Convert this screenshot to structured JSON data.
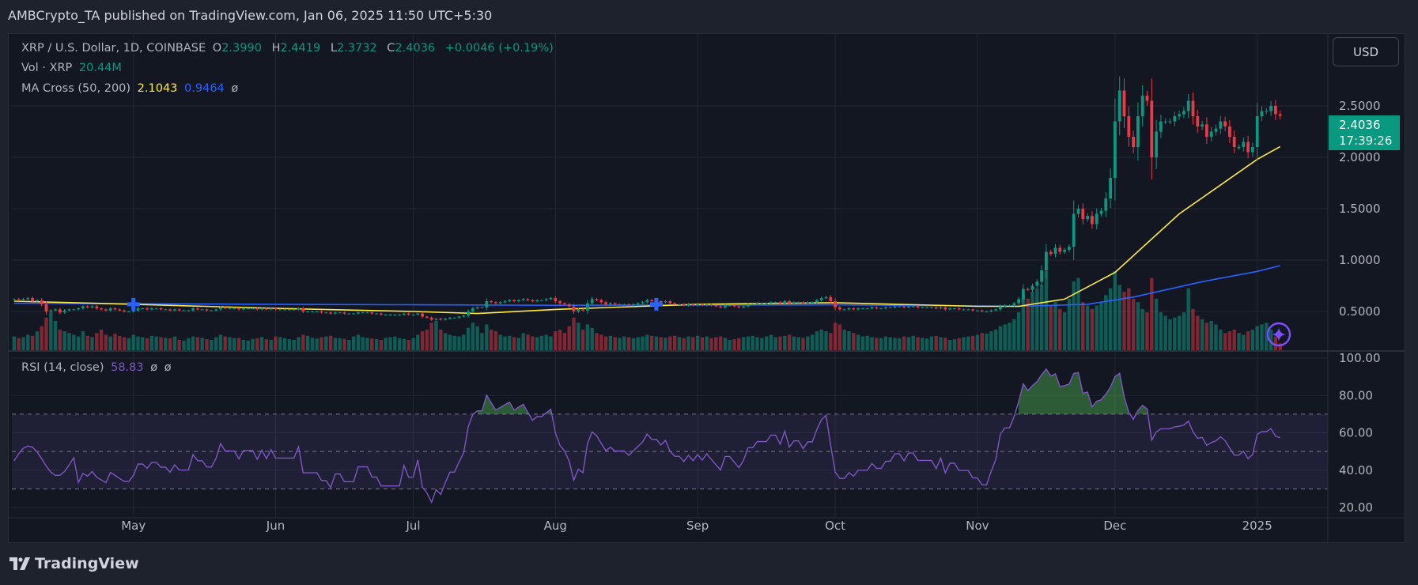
{
  "publisher_line": "AMBCrypto_TA published on TradingView.com, Jan 06, 2025 11:50 UTC+5:30",
  "legend": {
    "symbol": "XRP / U.S. Dollar, 1D, COINBASE",
    "o_label": "O",
    "o": "2.3990",
    "h_label": "H",
    "h": "2.4419",
    "l_label": "L",
    "l": "2.3732",
    "c_label": "C",
    "c": "2.4036",
    "change": "+0.0046 (+0.19%)",
    "vol_label": "Vol · XRP",
    "vol": "20.44M",
    "ma_label": "MA Cross (50, 200)",
    "ma50": "2.1043",
    "ma200": "0.9464",
    "ma_extra": "ø",
    "rsi_label": "RSI (14, close)",
    "rsi": "58.83",
    "rsi_extra1": "ø",
    "rsi_extra2": "ø"
  },
  "currency_button": "USD",
  "last_price": "2.4036",
  "countdown": "17:39:26",
  "footer_brand": "TradingView",
  "colors": {
    "up": "#089981",
    "down": "#f23645",
    "ma50": "#ffeb3b",
    "ma200": "#2962ff",
    "rsi": "#7e57c2",
    "background": "#131722"
  },
  "icons": {
    "cross_marker": "plus-icon",
    "assistant": "sparkle-icon",
    "brand": "tradingview-logo"
  },
  "chart_data": {
    "type": "candlestick",
    "start_date": "2024-04-05",
    "price_ticks": [
      "2.5000",
      "2.0000",
      "1.5000",
      "1.0000",
      "0.5000"
    ],
    "price_range": [
      0.04,
      3.18
    ],
    "rsi_ticks": [
      "100.00",
      "80.00",
      "60.00",
      "40.00",
      "20.00"
    ],
    "rsi_range": [
      14,
      104
    ],
    "rsi_bands": [
      70,
      50,
      30
    ],
    "time_ticks": [
      {
        "label": "May",
        "date": "2024-05-01"
      },
      {
        "label": "Jun",
        "date": "2024-06-01"
      },
      {
        "label": "Jul",
        "date": "2024-07-01"
      },
      {
        "label": "Aug",
        "date": "2024-08-01"
      },
      {
        "label": "Sep",
        "date": "2024-09-01"
      },
      {
        "label": "Oct",
        "date": "2024-10-01"
      },
      {
        "label": "Nov",
        "date": "2024-11-01"
      },
      {
        "label": "Dec",
        "date": "2024-12-01"
      },
      {
        "label": "2025",
        "date": "2025-01-01"
      }
    ],
    "close": [
      0.62,
      0.61,
      0.62,
      0.63,
      0.6,
      0.61,
      0.57,
      0.5,
      0.51,
      0.52,
      0.49,
      0.51,
      0.52,
      0.52,
      0.53,
      0.55,
      0.54,
      0.55,
      0.53,
      0.52,
      0.51,
      0.53,
      0.52,
      0.51,
      0.5,
      0.5,
      0.51,
      0.53,
      0.53,
      0.52,
      0.53,
      0.53,
      0.52,
      0.52,
      0.51,
      0.52,
      0.51,
      0.51,
      0.51,
      0.53,
      0.52,
      0.52,
      0.51,
      0.51,
      0.52,
      0.54,
      0.53,
      0.53,
      0.53,
      0.52,
      0.53,
      0.53,
      0.53,
      0.52,
      0.53,
      0.52,
      0.53,
      0.52,
      0.52,
      0.52,
      0.52,
      0.52,
      0.53,
      0.5,
      0.5,
      0.5,
      0.5,
      0.49,
      0.49,
      0.48,
      0.49,
      0.49,
      0.48,
      0.48,
      0.48,
      0.49,
      0.49,
      0.49,
      0.48,
      0.48,
      0.47,
      0.47,
      0.47,
      0.47,
      0.47,
      0.48,
      0.47,
      0.47,
      0.48,
      0.45,
      0.44,
      0.42,
      0.43,
      0.42,
      0.43,
      0.44,
      0.44,
      0.45,
      0.46,
      0.5,
      0.53,
      0.54,
      0.54,
      0.6,
      0.59,
      0.58,
      0.59,
      0.6,
      0.61,
      0.6,
      0.61,
      0.62,
      0.61,
      0.6,
      0.61,
      0.61,
      0.62,
      0.63,
      0.6,
      0.58,
      0.57,
      0.55,
      0.5,
      0.52,
      0.51,
      0.58,
      0.62,
      0.61,
      0.59,
      0.57,
      0.58,
      0.57,
      0.57,
      0.57,
      0.56,
      0.57,
      0.58,
      0.59,
      0.61,
      0.6,
      0.6,
      0.59,
      0.6,
      0.58,
      0.57,
      0.57,
      0.56,
      0.57,
      0.56,
      0.57,
      0.56,
      0.57,
      0.56,
      0.55,
      0.54,
      0.56,
      0.56,
      0.55,
      0.54,
      0.55,
      0.57,
      0.57,
      0.58,
      0.58,
      0.58,
      0.59,
      0.59,
      0.58,
      0.6,
      0.58,
      0.59,
      0.59,
      0.58,
      0.59,
      0.59,
      0.61,
      0.63,
      0.64,
      0.6,
      0.54,
      0.52,
      0.52,
      0.53,
      0.52,
      0.53,
      0.53,
      0.53,
      0.54,
      0.53,
      0.53,
      0.54,
      0.54,
      0.55,
      0.55,
      0.54,
      0.55,
      0.55,
      0.54,
      0.54,
      0.54,
      0.54,
      0.53,
      0.54,
      0.52,
      0.53,
      0.53,
      0.52,
      0.52,
      0.52,
      0.51,
      0.51,
      0.5,
      0.5,
      0.51,
      0.52,
      0.55,
      0.56,
      0.56,
      0.58,
      0.62,
      0.72,
      0.71,
      0.75,
      0.79,
      0.9,
      1.08,
      1.06,
      1.12,
      1.08,
      1.1,
      1.13,
      1.45,
      1.5,
      1.4,
      1.43,
      1.35,
      1.45,
      1.48,
      1.6,
      1.8,
      2.35,
      2.65,
      2.4,
      2.2,
      2.1,
      2.4,
      2.6,
      2.55,
      2.0,
      2.25,
      2.35,
      2.35,
      2.35,
      2.4,
      2.42,
      2.45,
      2.55,
      2.4,
      2.3,
      2.32,
      2.2,
      2.25,
      2.28,
      2.35,
      2.3,
      2.2,
      2.1,
      2.1,
      2.15,
      2.05,
      2.1,
      2.4,
      2.45,
      2.45,
      2.5,
      2.42,
      2.4036
    ],
    "volume_millions": [
      40,
      35,
      38,
      45,
      42,
      55,
      70,
      95,
      110,
      85,
      60,
      55,
      50,
      45,
      40,
      55,
      42,
      38,
      50,
      60,
      45,
      40,
      48,
      42,
      38,
      35,
      45,
      40,
      38,
      35,
      42,
      40,
      38,
      36,
      35,
      40,
      30,
      28,
      35,
      40,
      38,
      36,
      32,
      30,
      38,
      45,
      40,
      38,
      35,
      36,
      30,
      28,
      33,
      35,
      38,
      32,
      30,
      40,
      38,
      35,
      32,
      30,
      38,
      45,
      42,
      36,
      34,
      38,
      40,
      42,
      36,
      35,
      33,
      30,
      40,
      45,
      38,
      36,
      34,
      32,
      30,
      36,
      38,
      40,
      35,
      33,
      30,
      35,
      45,
      55,
      60,
      80,
      85,
      60,
      50,
      45,
      42,
      40,
      45,
      65,
      80,
      70,
      50,
      75,
      60,
      55,
      45,
      40,
      42,
      38,
      36,
      50,
      45,
      40,
      38,
      42,
      45,
      40,
      55,
      60,
      50,
      70,
      95,
      80,
      60,
      75,
      65,
      50,
      45,
      40,
      42,
      38,
      36,
      40,
      38,
      35,
      38,
      40,
      45,
      42,
      40,
      38,
      36,
      40,
      42,
      38,
      35,
      40,
      38,
      42,
      38,
      40,
      35,
      38,
      40,
      36,
      30,
      32,
      35,
      38,
      40,
      42,
      38,
      36,
      40,
      45,
      38,
      40,
      42,
      45,
      40,
      38,
      36,
      40,
      45,
      55,
      60,
      55,
      50,
      80,
      75,
      60,
      55,
      50,
      45,
      40,
      42,
      38,
      36,
      35,
      40,
      38,
      36,
      35,
      40,
      38,
      42,
      38,
      36,
      34,
      40,
      42,
      38,
      36,
      30,
      32,
      35,
      38,
      40,
      42,
      45,
      50,
      48,
      55,
      60,
      70,
      75,
      80,
      90,
      110,
      160,
      150,
      170,
      180,
      190,
      230,
      130,
      140,
      120,
      110,
      150,
      200,
      210,
      140,
      130,
      120,
      130,
      140,
      160,
      180,
      230,
      190,
      170,
      180,
      150,
      140,
      120,
      110,
      210,
      150,
      110,
      100,
      90,
      95,
      100,
      110,
      180,
      120,
      100,
      90,
      80,
      85,
      75,
      60,
      50,
      55,
      60,
      50,
      45,
      55,
      60,
      70,
      75,
      80,
      60,
      40,
      20
    ],
    "ma50": [
      [
        "2024-04-05",
        0.6
      ],
      [
        "2024-05-01",
        0.57
      ],
      [
        "2024-06-01",
        0.53
      ],
      [
        "2024-07-01",
        0.5
      ],
      [
        "2024-07-15",
        0.48
      ],
      [
        "2024-08-01",
        0.52
      ],
      [
        "2024-09-01",
        0.57
      ],
      [
        "2024-10-01",
        0.585
      ],
      [
        "2024-11-01",
        0.55
      ],
      [
        "2024-11-10",
        0.55
      ],
      [
        "2024-11-20",
        0.62
      ],
      [
        "2024-12-01",
        0.88
      ],
      [
        "2024-12-15",
        1.45
      ],
      [
        "2025-01-01",
        1.98
      ],
      [
        "2025-01-06",
        2.1043
      ]
    ],
    "ma200": [
      [
        "2024-04-05",
        0.58
      ],
      [
        "2024-06-01",
        0.57
      ],
      [
        "2024-08-01",
        0.56
      ],
      [
        "2024-10-01",
        0.565
      ],
      [
        "2024-11-10",
        0.55
      ],
      [
        "2024-11-25",
        0.57
      ],
      [
        "2024-12-05",
        0.64
      ],
      [
        "2024-12-20",
        0.79
      ],
      [
        "2025-01-01",
        0.89
      ],
      [
        "2025-01-06",
        0.9464
      ]
    ],
    "cross_markers": [
      "2024-05-01",
      "2024-08-23"
    ]
  }
}
